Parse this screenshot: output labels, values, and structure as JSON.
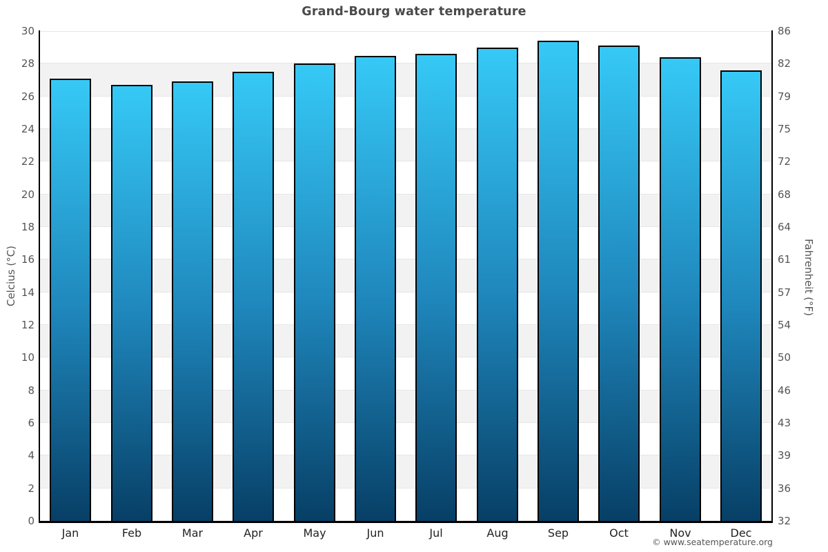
{
  "page": {
    "title": "Grand-Bourg water temperature",
    "footer": "© www.seatemperature.org"
  },
  "chart_data": {
    "type": "bar",
    "title": "Grand-Bourg water temperature",
    "categories": [
      "Jan",
      "Feb",
      "Mar",
      "Apr",
      "May",
      "Jun",
      "Jul",
      "Aug",
      "Sep",
      "Oct",
      "Nov",
      "Dec"
    ],
    "series": [
      {
        "name": "Water temperature",
        "unit": "°C",
        "values": [
          27.1,
          26.7,
          26.9,
          27.5,
          28.0,
          28.5,
          28.6,
          29.0,
          29.4,
          29.1,
          28.4,
          27.6
        ]
      }
    ],
    "xlabel": "",
    "ylabel": "Celcius (°C)",
    "y2label": "Fahrenheit (°F)",
    "ylim": [
      0,
      30
    ],
    "yticks": [
      0,
      2,
      4,
      6,
      8,
      10,
      12,
      14,
      16,
      18,
      20,
      22,
      24,
      26,
      28,
      30
    ],
    "y2ticks": [
      32,
      36,
      39,
      43,
      46,
      50,
      54,
      57,
      61,
      64,
      68,
      72,
      75,
      79,
      82,
      86
    ],
    "grid": true,
    "legend": "none",
    "plot_band_colors": [
      "#ffffff",
      "#f2f2f2"
    ]
  },
  "colors": {
    "bar_top": "#36c9f6",
    "bar_mid": "#1f87bc",
    "bar_bottom": "#073f66",
    "bar_border": "#000000",
    "band_gray": "#f2f2f2",
    "gridline": "#e6e6e6",
    "axis_line": "#000000",
    "title_text": "#4a4a4a",
    "tick_text": "#555555",
    "month_text": "#222222",
    "footer_text": "#555555"
  }
}
